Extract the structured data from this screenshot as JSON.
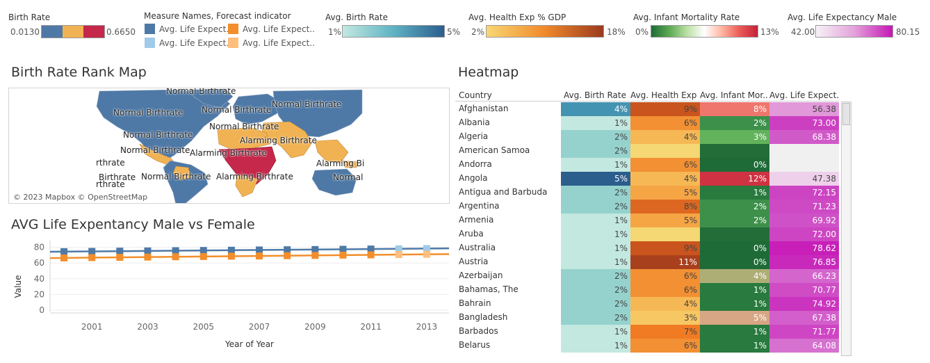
{
  "legends": {
    "birth_rate": {
      "title": "Birth Rate",
      "min": "0.0130",
      "max": "0.6650",
      "colors": [
        "#4e79a7",
        "#f1b253",
        "#c5284a"
      ]
    },
    "measure_names": {
      "title": "Measure Names, Forecast indicator",
      "items": [
        {
          "label": "Avg. Life Expect..",
          "color": "#4e79a7"
        },
        {
          "label": "Avg. Life Expect..",
          "color": "#f28e2b"
        },
        {
          "label": "Avg. Life Expect..",
          "color": "#a0cbe8"
        },
        {
          "label": "Avg. Life Expect..",
          "color": "#ffbe7d"
        }
      ]
    },
    "avg_birth_rate": {
      "title": "Avg. Birth Rate",
      "min": "1%",
      "max": "5%",
      "from": "#c3e8e0",
      "to": "#2b5d8d"
    },
    "avg_health_exp": {
      "title": "Avg. Health Exp % GDP",
      "min": "2%",
      "max": "18%",
      "from": "#f8d774",
      "to": "#9a3a1e"
    },
    "avg_infant_mortality": {
      "title": "Avg. Infant Mortality Rate",
      "min": "0%",
      "max": "13%",
      "from": "#1e6b37",
      "to": "#c4213a"
    },
    "avg_life_exp_male": {
      "title": "Avg. Life Expectancy Male",
      "min": "42.00",
      "max": "80.15",
      "from": "#f7f2f7",
      "to": "#c516b5"
    }
  },
  "map": {
    "title": "Birth Rate Rank Map",
    "attribution": "© 2023 Mapbox © OpenStreetMap",
    "labels": [
      {
        "text": "Normal Birthrate"
      },
      {
        "text": "Normal Birthrate"
      },
      {
        "text": "Normal Birthrate"
      },
      {
        "text": "Normal Birthrate"
      },
      {
        "text": "Normal Birthrate"
      },
      {
        "text": "Normal Birthrate"
      },
      {
        "text": "Alarming Birthrate"
      },
      {
        "text": "Normal Birthrate"
      },
      {
        "text": "Alarming Birthrate"
      },
      {
        "text": "Alarming Bi"
      },
      {
        "text": "Normal Birthrate"
      },
      {
        "text": "Alarming Birthrate"
      },
      {
        "text": "Normal"
      },
      {
        "text": "rthrate"
      },
      {
        "text": "Birthrate"
      },
      {
        "text": "rthrate"
      }
    ]
  },
  "line_chart": {
    "title": "AVG Life Expentancy Male vs Female",
    "y_axis_label": "Value",
    "x_axis_label": "Year of Year",
    "y_ticks": [
      "80",
      "60",
      "40",
      "20",
      "0"
    ],
    "x_ticks": [
      "2001",
      "2003",
      "2005",
      "2007",
      "2009",
      "2011",
      "2013"
    ]
  },
  "chart_data": {
    "type": "line",
    "title": "AVG Life Expentancy Male vs Female",
    "xlabel": "Year of Year",
    "ylabel": "Value",
    "ylim": [
      0,
      85
    ],
    "x": [
      2000,
      2001,
      2002,
      2003,
      2004,
      2005,
      2006,
      2007,
      2008,
      2009,
      2010,
      2011,
      2012,
      2013
    ],
    "series": [
      {
        "name": "Avg. Life Expect..",
        "color": "#4e79a7",
        "values": [
          74.5,
          74.8,
          75.1,
          75.4,
          75.7,
          76.0,
          76.3,
          76.6,
          76.9,
          77.2,
          77.5,
          77.8,
          null,
          null
        ]
      },
      {
        "name": "Avg. Life Expect..",
        "color": "#f28e2b",
        "values": [
          66.5,
          66.9,
          67.3,
          67.6,
          68.0,
          68.3,
          68.7,
          69.0,
          69.4,
          69.7,
          70.1,
          70.4,
          null,
          null
        ]
      },
      {
        "name": "Avg. Life Expect..",
        "color": "#a0cbe8",
        "values": [
          null,
          null,
          null,
          null,
          null,
          null,
          null,
          null,
          null,
          null,
          null,
          null,
          78.1,
          78.4
        ]
      },
      {
        "name": "Avg. Life Expect..",
        "color": "#ffbe7d",
        "values": [
          null,
          null,
          null,
          null,
          null,
          null,
          null,
          null,
          null,
          null,
          null,
          null,
          70.8,
          71.1
        ]
      }
    ],
    "grid": true
  },
  "heatmap": {
    "title": "Heatmap",
    "headers": [
      "Country",
      "Avg. Birth Rate",
      "Avg. Health Exp ..",
      "Avg. Infant Mor..",
      "Avg. Life Expect.."
    ],
    "rows": [
      {
        "country": "Afghanistan",
        "birth": "4%",
        "bv": 4,
        "health": "9%",
        "hv": 9,
        "infant": "8%",
        "iv": 8,
        "life": "56.38",
        "lv": 56.38
      },
      {
        "country": "Albania",
        "birth": "1%",
        "bv": 1,
        "health": "6%",
        "hv": 6,
        "infant": "2%",
        "iv": 2,
        "life": "73.00",
        "lv": 73.0
      },
      {
        "country": "Algeria",
        "birth": "2%",
        "bv": 2,
        "health": "4%",
        "hv": 4,
        "infant": "3%",
        "iv": 3,
        "life": "68.38",
        "lv": 68.38
      },
      {
        "country": "American Samoa",
        "birth": "2%",
        "bv": 2,
        "health": "",
        "hv": 2,
        "infant": "",
        "iv": 0,
        "life": "",
        "lv": null
      },
      {
        "country": "Andorra",
        "birth": "1%",
        "bv": 1,
        "health": "6%",
        "hv": 6,
        "infant": "0%",
        "iv": 0,
        "life": "",
        "lv": null
      },
      {
        "country": "Angola",
        "birth": "5%",
        "bv": 5,
        "health": "4%",
        "hv": 4,
        "infant": "12%",
        "iv": 12,
        "life": "47.38",
        "lv": 47.38
      },
      {
        "country": "Antigua and Barbuda",
        "birth": "2%",
        "bv": 2,
        "health": "5%",
        "hv": 5,
        "infant": "1%",
        "iv": 1,
        "life": "72.15",
        "lv": 72.15
      },
      {
        "country": "Argentina",
        "birth": "2%",
        "bv": 2,
        "health": "8%",
        "hv": 8,
        "infant": "2%",
        "iv": 2,
        "life": "71.23",
        "lv": 71.23
      },
      {
        "country": "Armenia",
        "birth": "1%",
        "bv": 1,
        "health": "5%",
        "hv": 5,
        "infant": "2%",
        "iv": 2,
        "life": "69.92",
        "lv": 69.92
      },
      {
        "country": "Aruba",
        "birth": "1%",
        "bv": 1,
        "health": "",
        "hv": 2,
        "infant": "",
        "iv": 0,
        "life": "72.00",
        "lv": 72.0
      },
      {
        "country": "Australia",
        "birth": "1%",
        "bv": 1,
        "health": "9%",
        "hv": 9,
        "infant": "0%",
        "iv": 0,
        "life": "78.62",
        "lv": 78.62
      },
      {
        "country": "Austria",
        "birth": "1%",
        "bv": 1,
        "health": "11%",
        "hv": 11,
        "infant": "0%",
        "iv": 0,
        "life": "76.85",
        "lv": 76.85
      },
      {
        "country": "Azerbaijan",
        "birth": "2%",
        "bv": 2,
        "health": "6%",
        "hv": 6,
        "infant": "4%",
        "iv": 4,
        "life": "66.23",
        "lv": 66.23
      },
      {
        "country": "Bahamas, The",
        "birth": "2%",
        "bv": 2,
        "health": "6%",
        "hv": 6,
        "infant": "1%",
        "iv": 1,
        "life": "70.77",
        "lv": 70.77
      },
      {
        "country": "Bahrain",
        "birth": "2%",
        "bv": 2,
        "health": "4%",
        "hv": 4,
        "infant": "1%",
        "iv": 1,
        "life": "74.92",
        "lv": 74.92
      },
      {
        "country": "Bangladesh",
        "birth": "2%",
        "bv": 2,
        "health": "3%",
        "hv": 3,
        "infant": "5%",
        "iv": 5,
        "life": "67.38",
        "lv": 67.38
      },
      {
        "country": "Barbados",
        "birth": "1%",
        "bv": 1,
        "health": "7%",
        "hv": 7,
        "infant": "1%",
        "iv": 1,
        "life": "71.77",
        "lv": 71.77
      },
      {
        "country": "Belarus",
        "birth": "1%",
        "bv": 1,
        "health": "6%",
        "hv": 6,
        "infant": "1%",
        "iv": 1,
        "life": "64.08",
        "lv": 64.08
      }
    ]
  }
}
